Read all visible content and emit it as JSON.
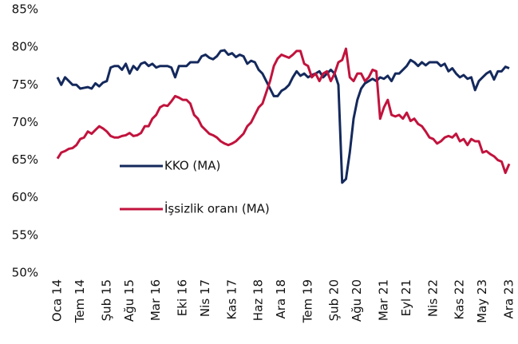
{
  "chart_data": {
    "type": "line",
    "categories": [
      "Oca 14",
      null,
      null,
      null,
      null,
      null,
      "Tem 14",
      null,
      null,
      null,
      null,
      null,
      null,
      "Şub 15",
      null,
      null,
      null,
      null,
      null,
      "Ağu 15",
      null,
      null,
      null,
      null,
      null,
      null,
      "Mar 16",
      null,
      null,
      null,
      null,
      null,
      null,
      "Eki 16",
      null,
      null,
      null,
      null,
      null,
      "Nis 17",
      null,
      null,
      null,
      null,
      null,
      null,
      "Kas 17",
      null,
      null,
      null,
      null,
      null,
      null,
      "Haz 18",
      null,
      null,
      null,
      null,
      null,
      "Ara 18",
      null,
      null,
      null,
      null,
      null,
      null,
      "Tem 19",
      null,
      null,
      null,
      null,
      null,
      null,
      "Şub 20",
      null,
      null,
      null,
      null,
      null,
      "Ağu 20",
      null,
      null,
      null,
      null,
      null,
      null,
      "Mar 21",
      null,
      null,
      null,
      null,
      null,
      "Eyl 21",
      null,
      null,
      null,
      null,
      null,
      null,
      "Nis 22",
      null,
      null,
      null,
      null,
      null,
      null,
      "Kas 22",
      null,
      null,
      null,
      null,
      null,
      "May 23",
      null,
      null,
      null,
      null,
      null,
      null,
      "Ara 23"
    ],
    "series": [
      {
        "name": "KKO (MA)",
        "color": "#14295c",
        "values": [
          76,
          75,
          76,
          75.5,
          75,
          75,
          74.5,
          74.6,
          74.7,
          74.5,
          75.2,
          74.8,
          75.3,
          75.5,
          77.3,
          77.5,
          77.5,
          77,
          77.8,
          76.5,
          77.5,
          77,
          77.8,
          78,
          77.5,
          77.8,
          77.3,
          77.5,
          77.5,
          77.5,
          77.3,
          76,
          77.5,
          77.5,
          77.5,
          78,
          78,
          78,
          78.8,
          79,
          78.6,
          78.4,
          78.8,
          79.5,
          79.6,
          79,
          79.2,
          78.7,
          79,
          78.8,
          77.8,
          78.2,
          78,
          77,
          76.5,
          75.5,
          74.5,
          73.5,
          73.5,
          74.2,
          74.5,
          75,
          76,
          76.8,
          76.2,
          76.5,
          76,
          76.3,
          76.5,
          76.8,
          76,
          76.5,
          77,
          76.5,
          75,
          62,
          62.5,
          66,
          70.5,
          73,
          74.5,
          75.2,
          75.5,
          75.8,
          75.5,
          76,
          75.8,
          76.2,
          75.5,
          76.5,
          76.5,
          77,
          77.5,
          78.3,
          78,
          77.5,
          78,
          77.6,
          78,
          78,
          78,
          77.5,
          77.8,
          76.8,
          77.2,
          76.5,
          76,
          76.3,
          75.8,
          76,
          74.3,
          75.5,
          76,
          76.5,
          76.8,
          75.7,
          76.8,
          76.8,
          77.4,
          77.2
        ]
      },
      {
        "name": "İşsizlik oranı (MA)",
        "color": "#c1133d",
        "values": [
          65.2,
          66,
          66.2,
          66.5,
          66.6,
          67,
          67.8,
          68,
          68.8,
          68.5,
          69,
          69.5,
          69.2,
          68.8,
          68.2,
          68,
          68,
          68.2,
          68.3,
          68.6,
          68.2,
          68.3,
          68.6,
          69.5,
          69.5,
          70.5,
          71,
          72,
          72.3,
          72.2,
          72.8,
          73.5,
          73.3,
          73,
          73,
          72.5,
          71,
          70.5,
          69.5,
          69,
          68.5,
          68.3,
          68,
          67.5,
          67.2,
          67,
          67.2,
          67.5,
          68,
          68.5,
          69.5,
          70,
          71,
          72,
          72.5,
          74,
          75.5,
          77.5,
          78.5,
          79,
          78.8,
          78.6,
          79,
          79.5,
          79.5,
          77.8,
          77.5,
          76,
          76.5,
          75.5,
          76.5,
          76.8,
          75.5,
          76.5,
          78,
          78.3,
          79.8,
          76,
          75.5,
          76.5,
          76.5,
          75.5,
          76,
          77,
          76.8,
          70.5,
          72,
          73,
          71,
          70.8,
          71,
          70.5,
          71.3,
          70.2,
          70.5,
          69.8,
          69.5,
          68.8,
          68,
          67.8,
          67.2,
          67.5,
          68,
          68.2,
          68,
          68.5,
          67.5,
          67.8,
          67,
          67.8,
          67.5,
          67.5,
          66,
          66.2,
          65.8,
          65.5,
          65,
          64.8,
          63.3,
          64.5
        ]
      }
    ],
    "ylim": [
      50,
      85
    ],
    "yticks": [
      {
        "value": 50,
        "label": "50%"
      },
      {
        "value": 55,
        "label": "55%"
      },
      {
        "value": 60,
        "label": "60%"
      },
      {
        "value": 65,
        "label": "65%"
      },
      {
        "value": 70,
        "label": "70%"
      },
      {
        "value": 75,
        "label": "75%"
      },
      {
        "value": 80,
        "label": "80%"
      },
      {
        "value": 85,
        "label": "85%"
      }
    ],
    "grid": false
  }
}
